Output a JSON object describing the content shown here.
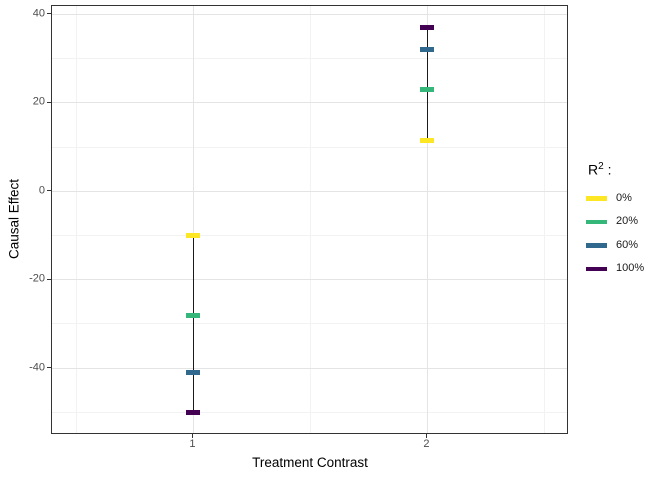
{
  "axes": {
    "x_title": "Treatment Contrast",
    "y_title": "Causal Effect"
  },
  "legend": {
    "title_base": "R",
    "title_sup": "2",
    "title_suffix": " :",
    "position": "right"
  },
  "chart_data": {
    "type": "scatter",
    "style": "crossbar-pointrange",
    "title": "",
    "xlabel": "Treatment Contrast",
    "ylabel": "Causal Effect",
    "x_categories": [
      1,
      2
    ],
    "series": [
      {
        "name": "0%",
        "color": "#FDE725",
        "values": [
          -10,
          11.5
        ]
      },
      {
        "name": "20%",
        "color": "#35B779",
        "values": [
          -28,
          23
        ]
      },
      {
        "name": "60%",
        "color": "#31688E",
        "values": [
          -41,
          32
        ]
      },
      {
        "name": "100%",
        "color": "#440154",
        "values": [
          -50,
          37
        ]
      }
    ],
    "ranges": [
      {
        "x": 1,
        "ymin": -50,
        "ymax": -10
      },
      {
        "x": 2,
        "ymin": 11.5,
        "ymax": 37
      }
    ],
    "x_axis": {
      "lim": [
        0.396,
        2.596
      ],
      "ticks": [
        {
          "value": 1,
          "label": "1"
        },
        {
          "value": 2,
          "label": "2"
        }
      ],
      "minor": [
        0.5,
        1.5,
        2.5
      ]
    },
    "y_axis": {
      "lim": [
        -54.65,
        41.9
      ],
      "ticks": [
        {
          "value": -40,
          "label": "-40"
        },
        {
          "value": -20,
          "label": "-20"
        },
        {
          "value": 0,
          "label": "0"
        },
        {
          "value": 20,
          "label": "20"
        },
        {
          "value": 40,
          "label": "40"
        }
      ],
      "minor": [
        -50,
        -30,
        -10,
        10,
        30
      ]
    },
    "legend_title": "R² :",
    "legend_position": "right",
    "grid": true
  },
  "colors": {
    "panel_border": "#333333",
    "grid_major": "#E4E4E4",
    "grid_minor": "#F2F2F2",
    "range_line": "#1A1A1A",
    "tick": "#333333",
    "tick_label": "#4D4D4D"
  }
}
